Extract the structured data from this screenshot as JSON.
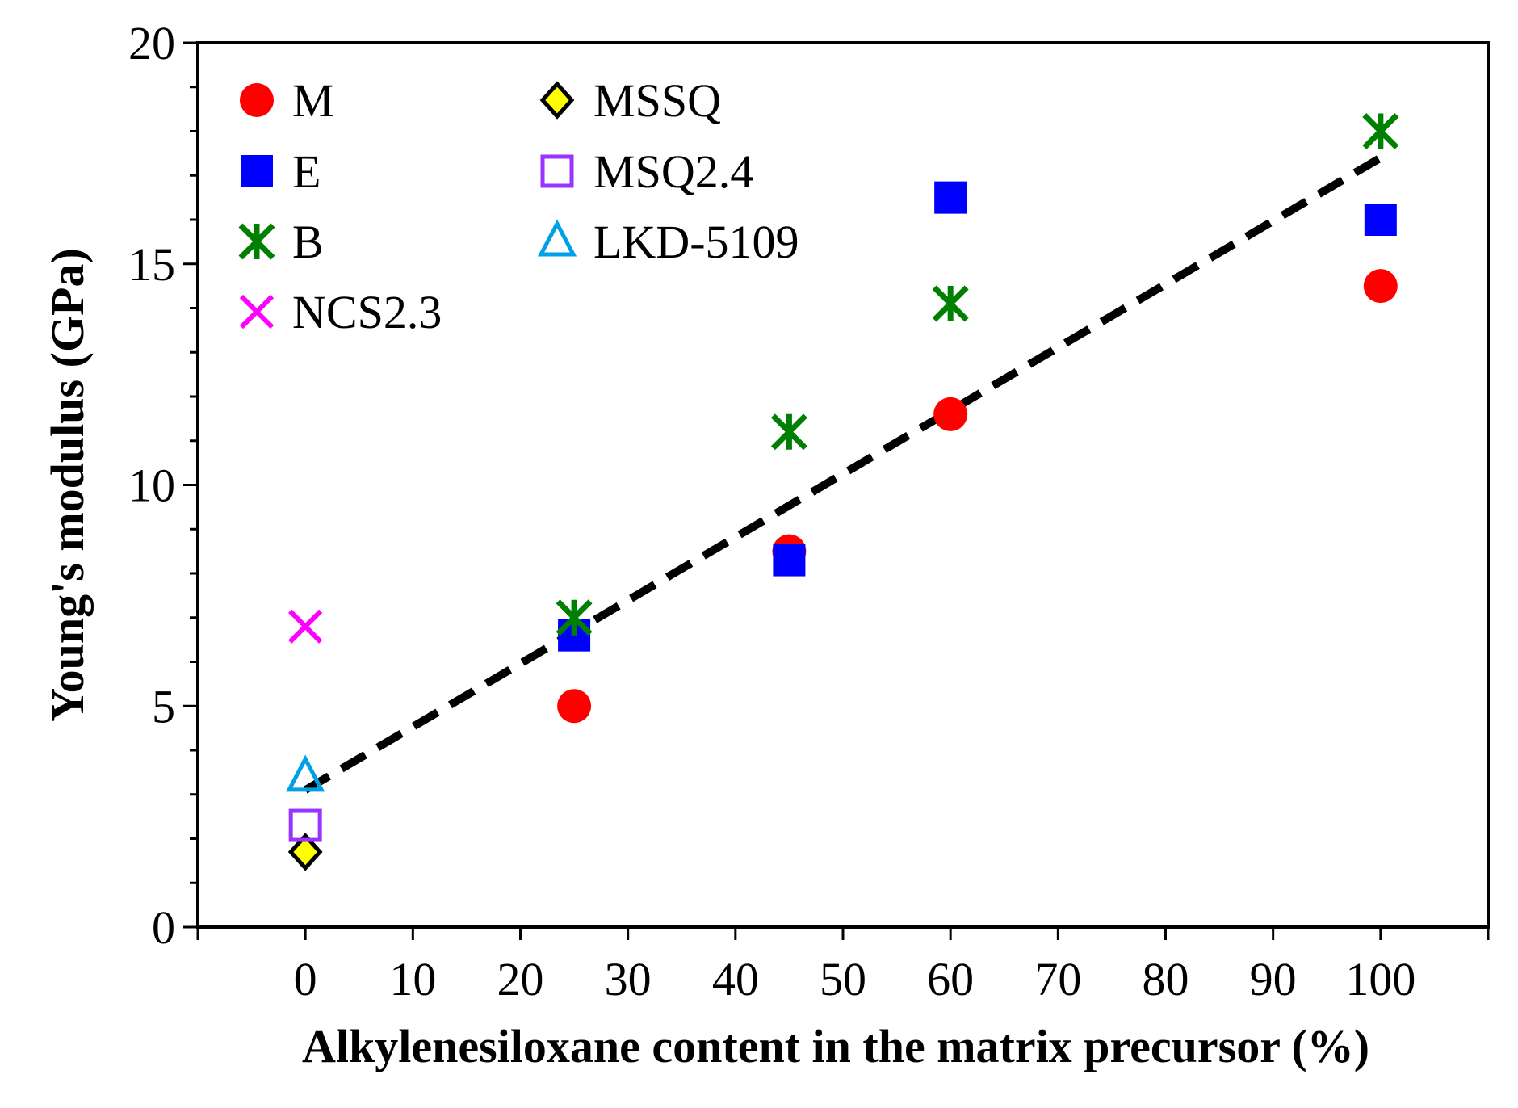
{
  "chart_data": {
    "type": "scatter",
    "title": "",
    "xlabel": "Alkylenesiloxane content in the matrix precursor (%)",
    "ylabel": "Young's modulus (GPa)",
    "xlim": [
      -10,
      110
    ],
    "ylim": [
      0,
      20
    ],
    "xticks": [
      0,
      10,
      20,
      30,
      40,
      50,
      60,
      70,
      80,
      90,
      100
    ],
    "yticks": [
      0,
      5,
      10,
      15,
      20
    ],
    "grid": false,
    "legend_position": "top-left",
    "series": [
      {
        "name": "M",
        "marker": "circle",
        "color": "#ff0000",
        "points": [
          {
            "x": 25,
            "y": 5.0
          },
          {
            "x": 45,
            "y": 8.5
          },
          {
            "x": 60,
            "y": 11.6
          },
          {
            "x": 100,
            "y": 14.5
          }
        ]
      },
      {
        "name": "E",
        "marker": "square",
        "color": "#0000ff",
        "points": [
          {
            "x": 25,
            "y": 6.6
          },
          {
            "x": 45,
            "y": 8.3
          },
          {
            "x": 60,
            "y": 16.5
          },
          {
            "x": 100,
            "y": 16.0
          }
        ]
      },
      {
        "name": "B",
        "marker": "asterisk",
        "color": "#008000",
        "points": [
          {
            "x": 25,
            "y": 7.0
          },
          {
            "x": 45,
            "y": 11.2
          },
          {
            "x": 60,
            "y": 14.1
          },
          {
            "x": 100,
            "y": 18.0
          }
        ]
      },
      {
        "name": "NCS2.3",
        "marker": "x",
        "color": "#ff00ff",
        "points": [
          {
            "x": 0,
            "y": 6.8
          }
        ]
      },
      {
        "name": "MSSQ",
        "marker": "diamond",
        "color": "#ffff00",
        "points": [
          {
            "x": 0,
            "y": 1.7
          }
        ]
      },
      {
        "name": "MSQ2.4",
        "marker": "open-square",
        "color": "#9933ff",
        "points": [
          {
            "x": 0,
            "y": 2.3
          }
        ]
      },
      {
        "name": "LKD-5109",
        "marker": "open-triangle",
        "color": "#00a0e9",
        "points": [
          {
            "x": 0,
            "y": 3.4
          }
        ]
      }
    ],
    "trendline": {
      "style": "dashed",
      "color": "#000000",
      "x": [
        0,
        100
      ],
      "y": [
        3.1,
        17.4
      ]
    }
  }
}
